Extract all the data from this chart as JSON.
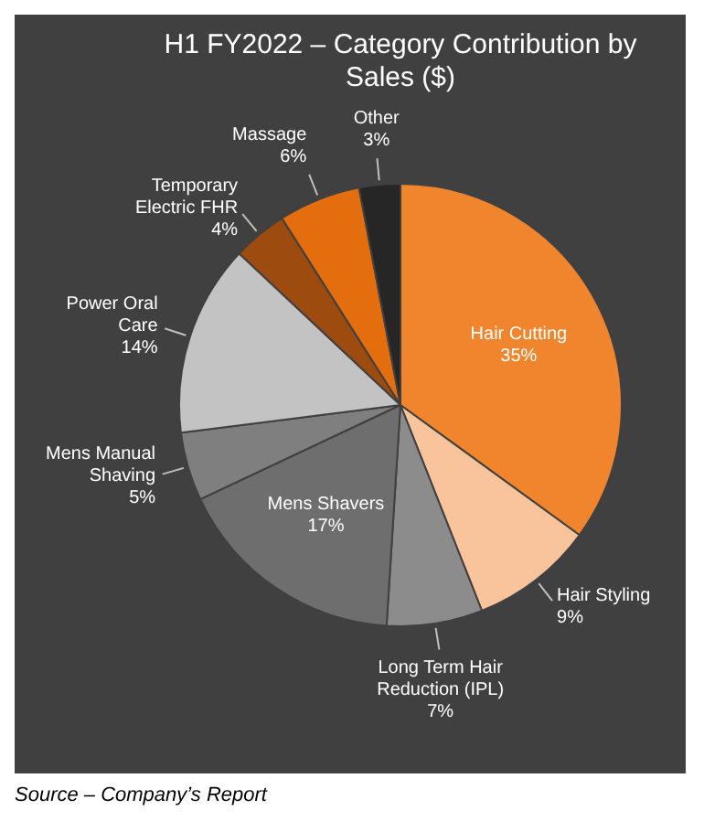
{
  "chart_data": {
    "type": "pie",
    "title": "H1 FY2022 – Category Contribution by Sales ($)",
    "categories": [
      "Hair Cutting",
      "Hair Styling",
      "Long Term Hair Reduction (IPL)",
      "Mens Shavers",
      "Mens Manual Shaving",
      "Power Oral Care",
      "Temporary Electric FHR",
      "Massage",
      "Other"
    ],
    "values": [
      35,
      9,
      7,
      17,
      5,
      14,
      4,
      6,
      3
    ],
    "value_labels": [
      "35%",
      "9%",
      "7%",
      "17%",
      "5%",
      "14%",
      "4%",
      "6%",
      "3%"
    ],
    "colors": [
      "#f0852d",
      "#f9c49c",
      "#8c8c8c",
      "#6e6e6e",
      "#7f7f7f",
      "#c3c3c3",
      "#9e4b10",
      "#e46e0e",
      "#262626"
    ],
    "legend": false,
    "annotations": [
      "Source – Company’s Report"
    ]
  }
}
